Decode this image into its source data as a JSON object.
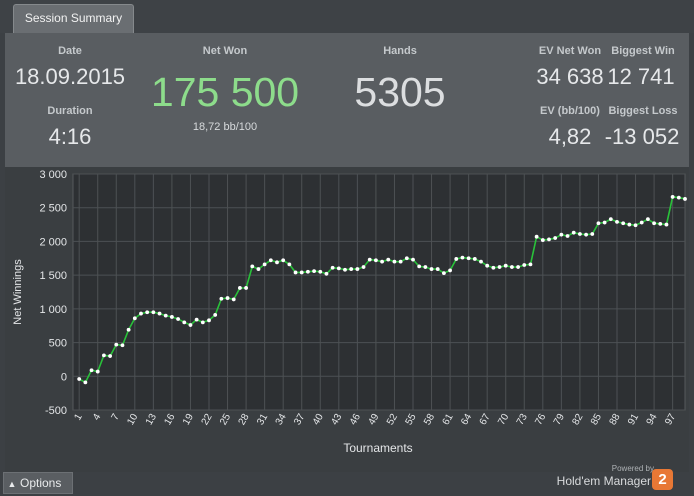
{
  "tab": {
    "label": "Session Summary"
  },
  "summary": {
    "date_label": "Date",
    "date_value": "18.09.2015",
    "duration_label": "Duration",
    "duration_value": "4:16",
    "net_won_label": "Net Won",
    "net_won_value": "175 500",
    "net_won_sub": "18,72 bb/100",
    "hands_label": "Hands",
    "hands_value": "5305",
    "ev_net_won_label": "EV Net Won",
    "ev_net_won_value": "34 638",
    "biggest_win_label": "Biggest Win",
    "biggest_win_value": "12 741",
    "ev_bb100_label": "EV (bb/100)",
    "ev_bb100_value": "4,82",
    "biggest_loss_label": "Biggest Loss",
    "biggest_loss_value": "-13 052"
  },
  "colors": {
    "net_won": "#8ddc8b",
    "line": "#29c23a",
    "marker": "#ffffff"
  },
  "footer": {
    "options_label": "Options",
    "powered_by": "Powered by",
    "brand": "Hold'em Manager",
    "logo_text": "2"
  },
  "chart_data": {
    "type": "line",
    "xlabel": "Tournaments",
    "ylabel": "Net Winnings",
    "ylim": [
      -500,
      3000
    ],
    "y_ticks": [
      -500,
      0,
      500,
      1000,
      1500,
      2000,
      2500,
      3000
    ],
    "y_tick_labels": [
      "-500",
      "0",
      "500",
      "1 000",
      "1 500",
      "2 000",
      "2 500",
      "3 000"
    ],
    "x_ticks": [
      1,
      4,
      7,
      10,
      13,
      16,
      19,
      22,
      25,
      28,
      31,
      34,
      37,
      40,
      43,
      46,
      49,
      52,
      55,
      58,
      61,
      64,
      67,
      70,
      73,
      76,
      79,
      82,
      85,
      88,
      91,
      94,
      97
    ],
    "xlim": [
      0,
      99
    ],
    "grid": true,
    "series": [
      {
        "x": [
          1,
          2,
          3,
          4,
          5,
          6,
          7,
          8,
          9,
          10,
          11,
          12,
          13,
          14,
          15,
          16,
          17,
          18,
          19,
          20,
          21,
          22,
          23,
          24,
          25,
          26,
          27,
          28,
          29,
          30,
          31,
          32,
          33,
          34,
          35,
          36,
          37,
          38,
          39,
          40,
          41,
          42,
          43,
          44,
          45,
          46,
          47,
          48,
          49,
          50,
          51,
          52,
          53,
          54,
          55,
          56,
          57,
          58,
          59,
          60,
          61,
          62,
          63,
          64,
          65,
          66,
          67,
          68,
          69,
          70,
          71,
          72,
          73,
          74,
          75,
          76,
          77,
          78,
          79,
          80,
          81,
          82,
          83,
          84,
          85,
          86,
          87,
          88,
          89,
          90,
          91,
          92,
          93,
          94,
          95,
          96,
          97,
          98,
          99
        ],
        "y": [
          -40,
          -90,
          90,
          70,
          310,
          300,
          470,
          460,
          690,
          860,
          930,
          950,
          950,
          930,
          900,
          880,
          850,
          800,
          760,
          840,
          800,
          830,
          910,
          1150,
          1160,
          1140,
          1310,
          1310,
          1630,
          1590,
          1660,
          1720,
          1690,
          1720,
          1660,
          1540,
          1540,
          1550,
          1560,
          1550,
          1520,
          1610,
          1600,
          1580,
          1590,
          1590,
          1620,
          1730,
          1720,
          1700,
          1730,
          1700,
          1700,
          1750,
          1730,
          1630,
          1620,
          1590,
          1590,
          1530,
          1570,
          1740,
          1760,
          1750,
          1740,
          1700,
          1640,
          1610,
          1620,
          1640,
          1620,
          1620,
          1650,
          1660,
          2070,
          2020,
          2030,
          2050,
          2100,
          2080,
          2130,
          2110,
          2100,
          2110,
          2270,
          2280,
          2330,
          2290,
          2270,
          2250,
          2240,
          2280,
          2330,
          2270,
          2260,
          2250,
          2660,
          2650,
          2630
        ]
      }
    ]
  }
}
